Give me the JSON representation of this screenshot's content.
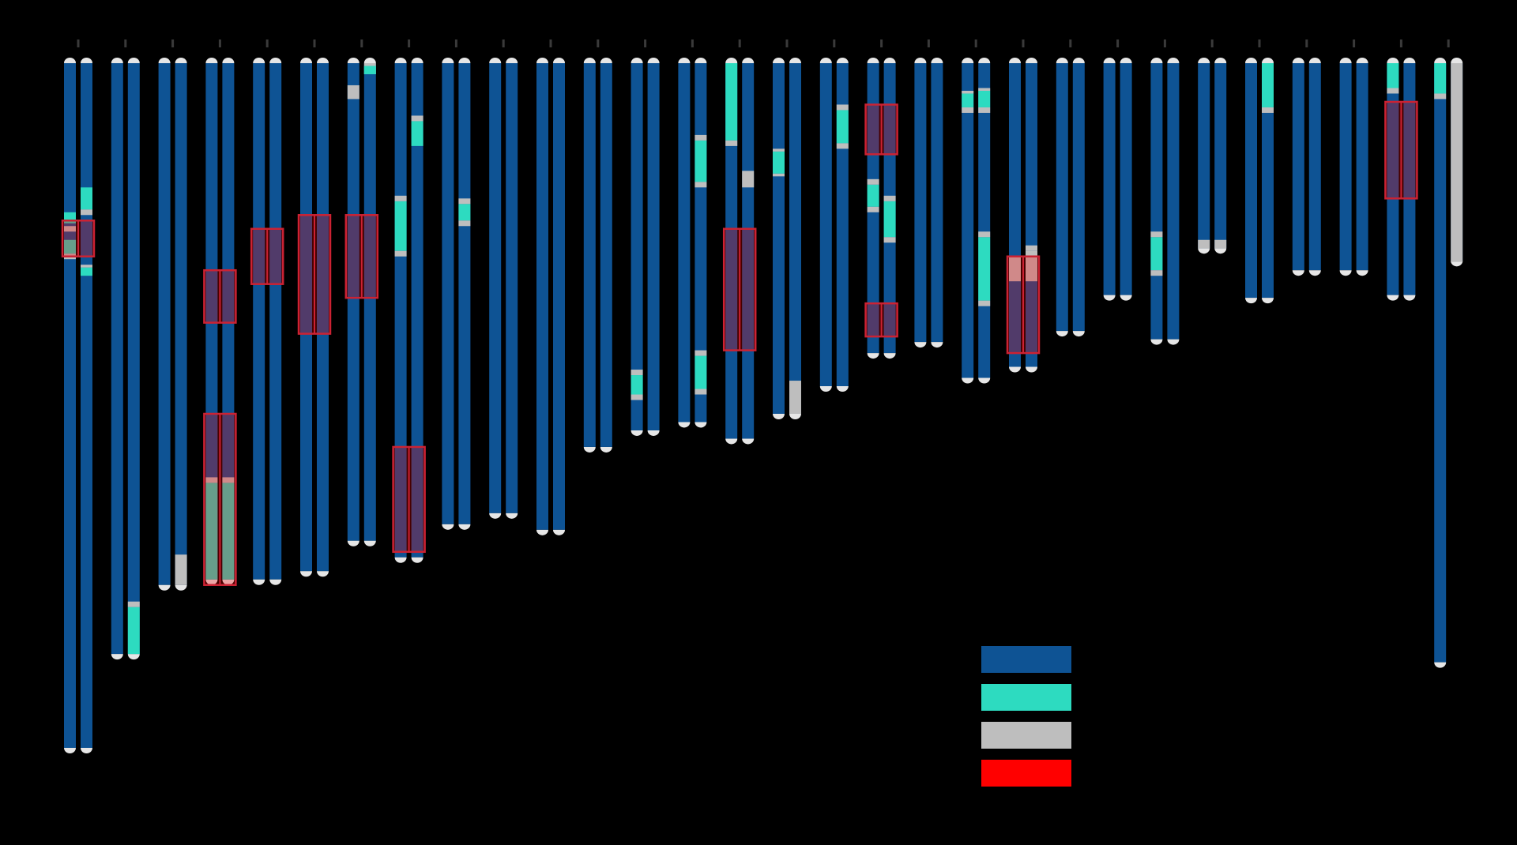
{
  "colors": {
    "background": "#000000",
    "segment_a": "#0e5394",
    "segment_b": "#2ddbc0",
    "segment_c": "#bebebe",
    "highlight": "#ff0000",
    "highlight_stroke": "#cc2233",
    "tick": "#3a3a3a",
    "cap": "#e6e6e6"
  },
  "legend": [
    {
      "name": "legend-blue",
      "color": "#0e5394"
    },
    {
      "name": "legend-teal",
      "color": "#2ddbc0"
    },
    {
      "name": "legend-gray",
      "color": "#bebebe"
    },
    {
      "name": "legend-red",
      "color": "#ff0000"
    }
  ],
  "chart_data": {
    "type": "ideogram",
    "scale_max": 250,
    "chromosomes": [
      {
        "length": 248,
        "a": [
          [
            [
              54,
              58,
              "b"
            ],
            [
              59,
              61,
              "c"
            ],
            [
              64,
              69,
              "b"
            ],
            [
              69,
              71,
              "c"
            ]
          ],
          []
        ],
        "b": [
          [
            [
              45,
              53,
              "b"
            ],
            [
              53,
              55,
              "c"
            ],
            [
              74,
              77,
              "b"
            ],
            [
              73,
              74,
              "c"
            ]
          ],
          []
        ],
        "highlights": [
          [
            57,
            70
          ]
        ]
      },
      {
        "length": 214,
        "a": [
          [],
          []
        ],
        "b": [
          [
            [
              197,
              214,
              "b"
            ],
            [
              195,
              197,
              "c"
            ]
          ],
          []
        ],
        "highlights": []
      },
      {
        "length": 189,
        "a": [
          [],
          []
        ],
        "b": [
          [
            [
              178,
              189,
              "c"
            ]
          ],
          []
        ],
        "highlights": []
      },
      {
        "length": 187,
        "a": [
          [
            [
              152,
              187,
              "b"
            ],
            [
              150,
              152,
              "c"
            ]
          ],
          []
        ],
        "b": [
          [
            [
              152,
              187,
              "b"
            ],
            [
              150,
              152,
              "c"
            ]
          ],
          []
        ],
        "highlights": [
          [
            75,
            94
          ],
          [
            127,
            189
          ]
        ]
      },
      {
        "length": 187,
        "a": [
          [],
          []
        ],
        "b": [
          [],
          []
        ],
        "highlights": [
          [
            60,
            80
          ]
        ]
      },
      {
        "length": 184,
        "a": [
          [],
          []
        ],
        "b": [
          [],
          []
        ],
        "highlights": [
          [
            55,
            98
          ]
        ]
      },
      {
        "length": 173,
        "a": [
          [
            [
              8,
              13,
              "c"
            ]
          ],
          []
        ],
        "b": [
          [
            [
              0,
              4,
              "c"
            ],
            [
              1,
              4,
              "b"
            ]
          ],
          []
        ],
        "highlights": [
          [
            55,
            85
          ]
        ]
      },
      {
        "length": 179,
        "a": [
          [
            [
              50,
              68,
              "b"
            ],
            [
              48,
              50,
              "c"
            ],
            [
              68,
              70,
              "c"
            ]
          ],
          []
        ],
        "b": [
          [
            [
              21,
              30,
              "b"
            ],
            [
              19,
              21,
              "c"
            ]
          ],
          []
        ],
        "highlights": [
          [
            139,
            177
          ]
        ]
      },
      {
        "length": 167,
        "a": [
          [],
          []
        ],
        "b": [
          [
            [
              51,
              57,
              "b"
            ],
            [
              49,
              51,
              "c"
            ],
            [
              57,
              59,
              "c"
            ]
          ],
          []
        ],
        "highlights": []
      },
      {
        "length": 163,
        "a": [
          [],
          []
        ],
        "b": [
          [],
          []
        ],
        "highlights": []
      },
      {
        "length": 169,
        "a": [
          [],
          []
        ],
        "b": [
          [],
          []
        ],
        "highlights": []
      },
      {
        "length": 139,
        "a": [
          [],
          []
        ],
        "b": [
          [],
          []
        ],
        "highlights": []
      },
      {
        "length": 133,
        "a": [
          [
            [
              113,
              120,
              "b"
            ],
            [
              111,
              113,
              "c"
            ],
            [
              120,
              122,
              "c"
            ]
          ],
          []
        ],
        "b": [
          [],
          []
        ],
        "highlights": []
      },
      {
        "length": 130,
        "a": [
          [],
          []
        ],
        "b": [
          [
            [
              28,
              43,
              "b"
            ],
            [
              26,
              28,
              "c"
            ],
            [
              43,
              45,
              "c"
            ],
            [
              106,
              118,
              "b"
            ],
            [
              104,
              106,
              "c"
            ],
            [
              118,
              120,
              "c"
            ]
          ],
          []
        ],
        "highlights": []
      },
      {
        "length": 136,
        "a": [
          [
            [
              0,
              28,
              "b"
            ],
            [
              28,
              30,
              "c"
            ]
          ],
          []
        ],
        "b": [
          [
            [
              39,
              45,
              "c"
            ]
          ],
          []
        ],
        "highlights": [
          [
            60,
            104
          ]
        ]
      },
      {
        "length": 127,
        "a": [
          [
            [
              32,
              40,
              "b"
            ],
            [
              31,
              32,
              "c"
            ],
            [
              40,
              41,
              "c"
            ]
          ],
          []
        ],
        "b": [
          [
            [
              115,
              127,
              "c"
            ]
          ],
          []
        ],
        "highlights": []
      },
      {
        "length": 117,
        "a": [
          [],
          []
        ],
        "b": [
          [
            [
              17,
              29,
              "b"
            ],
            [
              15,
              17,
              "c"
            ],
            [
              29,
              31,
              "c"
            ]
          ],
          []
        ],
        "highlights": []
      },
      {
        "length": 105,
        "a": [
          [
            [
              44,
              52,
              "b"
            ],
            [
              42,
              44,
              "c"
            ],
            [
              52,
              54,
              "c"
            ]
          ],
          []
        ],
        "b": [
          [
            [
              50,
              63,
              "b"
            ],
            [
              48,
              50,
              "c"
            ],
            [
              63,
              65,
              "c"
            ]
          ],
          []
        ],
        "highlights": [
          [
            15,
            33
          ],
          [
            87,
            99
          ]
        ]
      },
      {
        "length": 101,
        "a": [
          [],
          []
        ],
        "b": [
          [],
          []
        ],
        "highlights": []
      },
      {
        "length": 114,
        "a": [
          [
            [
              11,
              16,
              "b"
            ],
            [
              10,
              11,
              "c"
            ],
            [
              16,
              18,
              "c"
            ]
          ],
          []
        ],
        "b": [
          [
            [
              10,
              16,
              "b"
            ],
            [
              9,
              10,
              "c"
            ],
            [
              16,
              18,
              "c"
            ],
            [
              63,
              86,
              "b"
            ],
            [
              61,
              63,
              "c"
            ],
            [
              86,
              88,
              "c"
            ]
          ],
          []
        ],
        "highlights": []
      },
      {
        "length": 110,
        "a": [
          [
            [
              70,
              79,
              "c"
            ]
          ],
          []
        ],
        "b": [
          [
            [
              68,
              79,
              "c"
            ],
            [
              66,
              68,
              "c"
            ]
          ],
          []
        ],
        "highlights": [
          [
            70,
            105
          ]
        ]
      },
      {
        "length": 97,
        "a": [
          [],
          []
        ],
        "b": [
          [],
          []
        ],
        "highlights": []
      },
      {
        "length": 84,
        "a": [
          [],
          []
        ],
        "b": [
          [],
          []
        ],
        "highlights": []
      },
      {
        "length": 100,
        "a": [
          [
            [
              63,
              75,
              "b"
            ],
            [
              61,
              63,
              "c"
            ],
            [
              75,
              77,
              "c"
            ]
          ],
          []
        ],
        "b": [
          [],
          []
        ],
        "highlights": []
      },
      {
        "length": 67,
        "a": [
          [
            [
              64,
              67,
              "c"
            ]
          ],
          []
        ],
        "b": [
          [
            [
              64,
              67,
              "c"
            ]
          ],
          []
        ],
        "highlights": []
      },
      {
        "length": 85,
        "a": [
          [],
          []
        ],
        "b": [
          [
            [
              0,
              16,
              "b"
            ],
            [
              16,
              18,
              "c"
            ]
          ],
          []
        ],
        "highlights": []
      },
      {
        "length": 75,
        "a": [
          [],
          []
        ],
        "b": [
          [],
          []
        ],
        "highlights": []
      },
      {
        "length": 75,
        "a": [
          [],
          []
        ],
        "b": [
          [],
          []
        ],
        "highlights": []
      },
      {
        "length": 84,
        "a": [
          [
            [
              0,
              9,
              "b"
            ],
            [
              9,
              11,
              "c"
            ]
          ],
          []
        ],
        "b": [
          [],
          []
        ],
        "highlights": [
          [
            14,
            49
          ]
        ]
      },
      {
        "length": 217,
        "a": [
          [
            [
              0,
              11,
              "b"
            ],
            [
              11,
              13,
              "c"
            ]
          ],
          []
        ],
        "b": [
          [
            [
              0,
              72,
              "c"
            ]
          ],
          []
        ],
        "b_full": true,
        "highlights": []
      }
    ]
  }
}
